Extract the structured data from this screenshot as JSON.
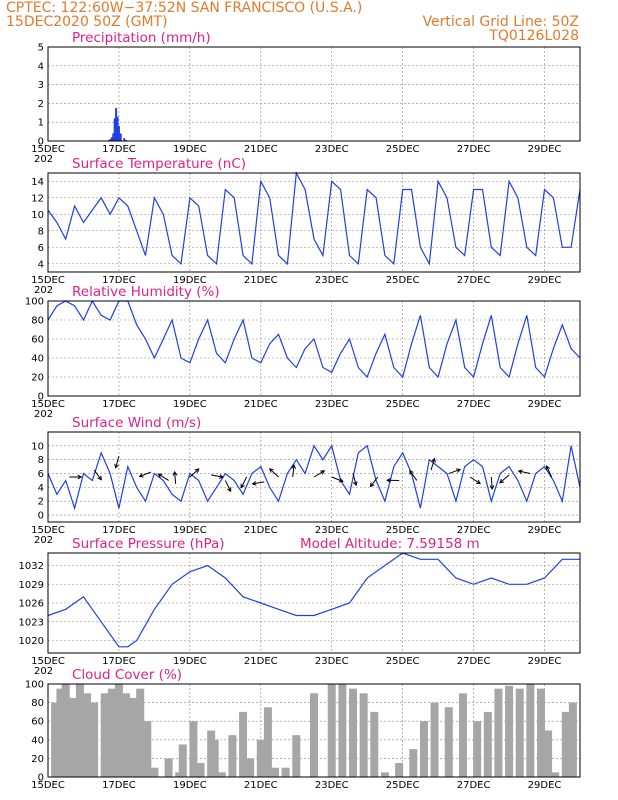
{
  "header": {
    "line1": "CPTEC:   122:60W−37:52N   SAN FRANCISCO (U.S.A.)",
    "line2": "15DEC2020  50Z (GMT)",
    "right1": "Vertical Grid Line: 50Z",
    "right2": "TQ0126L028"
  },
  "x_labels": [
    "15DEC",
    "17DEC",
    "19DEC",
    "21DEC",
    "23DEC",
    "25DEC",
    "27DEC",
    "29DEC"
  ],
  "extra_x_label": "202",
  "colors": {
    "header": "#e07b2c",
    "title": "#e0208a",
    "line": "#2040e0",
    "cloud": "#a6a6a6"
  },
  "chart_data": [
    {
      "type": "bar",
      "title": "Precipitation (mm/h)",
      "yticks": [
        "0",
        "1",
        "2",
        "3",
        "4",
        "5"
      ],
      "ylim": [
        0,
        5
      ],
      "x": [
        1.72,
        1.76,
        1.8,
        1.84,
        1.88,
        1.92,
        1.96,
        2.0,
        2.05,
        2.15,
        2.2
      ],
      "values": [
        0.05,
        0.1,
        0.2,
        0.4,
        1.2,
        1.75,
        1.3,
        0.8,
        0.4,
        0.15,
        0.05
      ]
    },
    {
      "type": "line",
      "title": "Surface Temperature (nC)",
      "yticks": [
        "4",
        "6",
        "8",
        "10",
        "12",
        "14"
      ],
      "ylim": [
        3,
        15
      ],
      "x": [
        0,
        0.25,
        0.5,
        0.75,
        1,
        1.25,
        1.5,
        1.75,
        2,
        2.25,
        2.5,
        2.75,
        3,
        3.25,
        3.5,
        3.75,
        4,
        4.25,
        4.5,
        4.75,
        5,
        5.25,
        5.5,
        5.75,
        6,
        6.25,
        6.5,
        6.75,
        7,
        7.25,
        7.5,
        7.75,
        8,
        8.25,
        8.5,
        8.75,
        9,
        9.25,
        9.5,
        9.75,
        10,
        10.25,
        10.5,
        10.75,
        11,
        11.25,
        11.5,
        11.75,
        12,
        12.25,
        12.5,
        12.75,
        13,
        13.25,
        13.5,
        13.75,
        14,
        14.25,
        14.5,
        14.75,
        15
      ],
      "values": [
        10.5,
        9,
        7,
        11,
        9,
        10.5,
        12,
        10,
        12,
        11,
        8,
        5,
        12,
        10,
        5,
        4,
        12,
        11,
        5,
        4,
        13,
        12,
        5,
        4,
        14,
        12,
        5,
        4,
        15,
        13,
        7,
        5,
        14,
        13,
        5,
        4,
        13,
        12,
        5,
        4,
        13,
        13,
        6,
        4,
        14,
        12,
        6,
        5,
        13,
        13,
        6,
        5,
        14,
        12,
        6,
        5,
        13,
        12,
        6,
        6,
        13
      ]
    },
    {
      "type": "line",
      "title": "Relative Humidity (%)",
      "yticks": [
        "0",
        "20",
        "40",
        "60",
        "80",
        "100"
      ],
      "ylim": [
        0,
        100
      ],
      "x": [
        0,
        0.25,
        0.5,
        0.75,
        1,
        1.25,
        1.5,
        1.75,
        2,
        2.25,
        2.5,
        2.75,
        3,
        3.25,
        3.5,
        3.75,
        4,
        4.25,
        4.5,
        4.75,
        5,
        5.25,
        5.5,
        5.75,
        6,
        6.25,
        6.5,
        6.75,
        7,
        7.25,
        7.5,
        7.75,
        8,
        8.25,
        8.5,
        8.75,
        9,
        9.25,
        9.5,
        9.75,
        10,
        10.25,
        10.5,
        10.75,
        11,
        11.25,
        11.5,
        11.75,
        12,
        12.25,
        12.5,
        12.75,
        13,
        13.25,
        13.5,
        13.75,
        14,
        14.25,
        14.5,
        14.75,
        15
      ],
      "values": [
        80,
        95,
        100,
        95,
        80,
        100,
        85,
        80,
        100,
        100,
        75,
        60,
        40,
        60,
        80,
        40,
        35,
        60,
        80,
        45,
        35,
        60,
        80,
        40,
        35,
        55,
        65,
        40,
        30,
        50,
        60,
        30,
        25,
        45,
        60,
        30,
        20,
        45,
        65,
        30,
        20,
        55,
        85,
        30,
        20,
        55,
        80,
        30,
        20,
        55,
        85,
        30,
        20,
        55,
        85,
        30,
        20,
        50,
        75,
        50,
        40
      ]
    },
    {
      "type": "line",
      "title": "Surface Wind (m/s)",
      "yticks": [
        "0",
        "2",
        "4",
        "6",
        "8",
        "10"
      ],
      "ylim": [
        -1,
        12
      ],
      "x": [
        0,
        0.25,
        0.5,
        0.75,
        1,
        1.25,
        1.5,
        1.75,
        2,
        2.25,
        2.5,
        2.75,
        3,
        3.25,
        3.5,
        3.75,
        4,
        4.25,
        4.5,
        4.75,
        5,
        5.25,
        5.5,
        5.75,
        6,
        6.25,
        6.5,
        6.75,
        7,
        7.25,
        7.5,
        7.75,
        8,
        8.25,
        8.5,
        8.75,
        9,
        9.25,
        9.5,
        9.75,
        10,
        10.25,
        10.5,
        10.75,
        11,
        11.25,
        11.5,
        11.75,
        12,
        12.25,
        12.5,
        12.75,
        13,
        13.25,
        13.5,
        13.75,
        14,
        14.25,
        14.5,
        14.75,
        15
      ],
      "values": [
        6,
        3,
        5,
        1,
        6,
        5,
        9,
        6,
        1,
        7,
        4,
        2,
        6,
        5,
        3,
        2,
        6,
        5,
        2,
        4,
        6,
        5,
        3,
        6,
        7,
        4,
        2,
        6,
        8,
        6,
        10,
        8,
        10,
        5,
        3,
        9,
        10,
        5,
        2,
        7,
        9,
        6,
        1,
        8,
        7,
        6,
        2,
        7,
        8,
        7,
        2,
        6,
        7,
        5,
        2,
        6,
        7,
        5,
        2,
        10,
        4
      ],
      "arrow_x": [
        0.6,
        1.3,
        2.0,
        2.9,
        3.4,
        3.6,
        4.0,
        4.6,
        5.0,
        5.6,
        6.1,
        6.5,
        6.9,
        7.5,
        8.0,
        8.6,
        9.3,
        9.9,
        10.4,
        10.8,
        11.3,
        11.9,
        12.5,
        13.0,
        13.6,
        14.2
      ],
      "arrow_y": [
        5.5,
        6.5,
        8.5,
        6.2,
        5.0,
        4.5,
        5.5,
        5.8,
        5.0,
        5.5,
        4.8,
        5.5,
        5.5,
        5.5,
        5.5,
        6.0,
        5.5,
        5.0,
        5.0,
        6.5,
        6.0,
        5.5,
        5.5,
        5.8,
        6.0,
        5.5
      ]
    },
    {
      "type": "line",
      "title": "Surface Pressure (hPa)",
      "subtitle": "Model Altitude: 7.59158  m",
      "yticks": [
        "1020",
        "1023",
        "1026",
        "1029",
        "1032"
      ],
      "ylim": [
        1018,
        1034
      ],
      "x": [
        0,
        0.5,
        1,
        1.5,
        2,
        2.25,
        2.5,
        3,
        3.5,
        4,
        4.5,
        5,
        5.5,
        6,
        6.5,
        7,
        7.5,
        8,
        8.5,
        9,
        9.5,
        10,
        10.5,
        11,
        11.5,
        12,
        12.5,
        13,
        13.5,
        14,
        14.5,
        15
      ],
      "values": [
        1024,
        1025,
        1027,
        1023,
        1019,
        1019,
        1020,
        1025,
        1029,
        1031,
        1032,
        1030,
        1027,
        1026,
        1025,
        1024,
        1024,
        1025,
        1026,
        1030,
        1032,
        1034,
        1033,
        1033,
        1030,
        1029,
        1030,
        1029,
        1029,
        1030,
        1033,
        1033
      ]
    },
    {
      "type": "area",
      "title": "Cloud Cover (%)",
      "yticks": [
        "0",
        "20",
        "40",
        "60",
        "80",
        "100"
      ],
      "ylim": [
        0,
        100
      ],
      "x": [
        0.2,
        0.35,
        0.5,
        0.7,
        0.9,
        1.1,
        1.3,
        1.6,
        1.8,
        2.0,
        2.2,
        2.4,
        2.6,
        2.8,
        3.0,
        3.2,
        3.4,
        3.7,
        3.8,
        4.1,
        4.3,
        4.6,
        4.7,
        4.9,
        5.2,
        5.5,
        5.7,
        6.0,
        6.2,
        6.4,
        6.7,
        7.0,
        7.5,
        8.0,
        8.3,
        8.6,
        8.9,
        9.2,
        9.5,
        9.9,
        10.3,
        10.6,
        10.9,
        11.3,
        11.7,
        12.1,
        12.4,
        12.7,
        13.0,
        13.3,
        13.6,
        13.9,
        14.1,
        14.3,
        14.6,
        14.8
      ],
      "values": [
        80,
        95,
        100,
        85,
        100,
        90,
        80,
        90,
        95,
        100,
        90,
        85,
        95,
        60,
        10,
        0,
        20,
        5,
        35,
        60,
        15,
        50,
        40,
        5,
        45,
        70,
        20,
        40,
        75,
        10,
        10,
        45,
        90,
        100,
        100,
        95,
        90,
        70,
        5,
        15,
        30,
        60,
        80,
        75,
        90,
        60,
        70,
        95,
        98,
        95,
        100,
        95,
        50,
        5,
        70,
        80
      ]
    }
  ]
}
